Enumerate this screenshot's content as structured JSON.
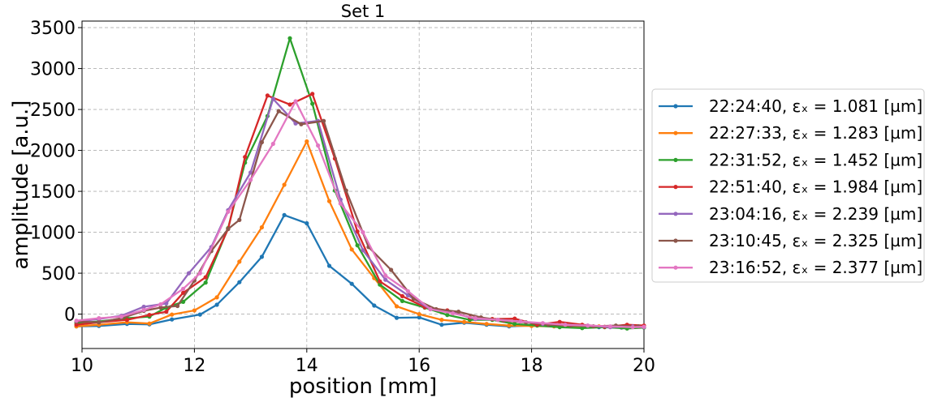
{
  "chart_data": {
    "type": "line",
    "title": "Set 1",
    "xlabel": "position [mm]",
    "ylabel": "amplitude [a.u.]",
    "xlim": [
      10,
      20
    ],
    "ylim": [
      -420,
      3580
    ],
    "xticks": [
      10,
      12,
      14,
      16,
      18,
      20
    ],
    "yticks": [
      0,
      500,
      1000,
      1500,
      2000,
      2500,
      3000,
      3500
    ],
    "grid": true,
    "legend_position": "right-outside",
    "series": [
      {
        "name": "22:24:40, εₓ = 1.081 [µm]",
        "color": "#1f77b4",
        "x": [
          9.9,
          10.3,
          10.8,
          11.2,
          11.6,
          12.1,
          12.4,
          12.8,
          13.2,
          13.6,
          14.0,
          14.4,
          14.8,
          15.2,
          15.6,
          16.0,
          16.4,
          16.8,
          17.2,
          17.6,
          18.0,
          18.4,
          18.8,
          19.2,
          19.6,
          20.0
        ],
        "y": [
          -150,
          -145,
          -120,
          -125,
          -65,
          -5,
          115,
          390,
          700,
          1210,
          1110,
          590,
          370,
          105,
          -45,
          -40,
          -130,
          -105,
          -130,
          -150,
          -140,
          -145,
          -150,
          -160,
          -165,
          -160
        ]
      },
      {
        "name": "22:27:33, εₓ = 1.283 [µm]",
        "color": "#ff7f0e",
        "x": [
          9.9,
          10.3,
          10.8,
          11.2,
          11.6,
          12.0,
          12.4,
          12.8,
          13.2,
          13.6,
          14.0,
          14.4,
          14.8,
          15.2,
          15.6,
          16.0,
          16.4,
          16.8,
          17.2,
          17.6,
          18.0,
          18.4,
          18.8,
          19.2,
          19.6,
          20.0
        ],
        "y": [
          -150,
          -130,
          -100,
          -115,
          -5,
          45,
          205,
          640,
          1060,
          1580,
          2110,
          1380,
          790,
          440,
          95,
          0,
          -70,
          -95,
          -120,
          -140,
          -145,
          -150,
          -150,
          -150,
          -160,
          -160
        ]
      },
      {
        "name": "22:31:52, εₓ = 1.452 [µm]",
        "color": "#2ca02c",
        "x": [
          9.9,
          10.3,
          10.8,
          11.2,
          11.5,
          11.8,
          12.2,
          12.6,
          12.9,
          13.3,
          13.7,
          14.1,
          14.5,
          14.9,
          15.3,
          15.7,
          16.1,
          16.5,
          16.9,
          17.3,
          17.7,
          18.1,
          18.5,
          18.9,
          19.3,
          19.7,
          20.0
        ],
        "y": [
          -110,
          -90,
          -50,
          -30,
          80,
          150,
          385,
          1050,
          1850,
          2420,
          3370,
          2570,
          1510,
          840,
          360,
          160,
          80,
          -10,
          -70,
          -70,
          -120,
          -140,
          -160,
          -170,
          -160,
          -175,
          -165
        ]
      },
      {
        "name": "22:51:40, εₓ = 1.984 [µm]",
        "color": "#d62728",
        "x": [
          9.9,
          10.3,
          10.8,
          11.2,
          11.5,
          11.8,
          12.2,
          12.6,
          12.9,
          13.3,
          13.7,
          14.1,
          14.5,
          14.9,
          15.3,
          15.7,
          16.1,
          16.5,
          16.9,
          17.3,
          17.7,
          18.1,
          18.5,
          18.9,
          19.3,
          19.7,
          20.0
        ],
        "y": [
          -130,
          -100,
          -70,
          -10,
          30,
          260,
          450,
          1040,
          1920,
          2670,
          2560,
          2690,
          1900,
          1010,
          400,
          220,
          85,
          45,
          -40,
          -60,
          -55,
          -130,
          -95,
          -130,
          -155,
          -130,
          -140
        ]
      },
      {
        "name": "23:04:16, εₓ = 2.239 [µm]",
        "color": "#9467bd",
        "x": [
          9.9,
          10.3,
          10.7,
          11.1,
          11.5,
          11.9,
          12.3,
          12.6,
          13.0,
          13.4,
          13.8,
          14.2,
          14.6,
          15.0,
          15.4,
          15.8,
          16.2,
          16.6,
          17.0,
          17.4,
          17.8,
          18.2,
          18.6,
          19.0,
          19.4,
          19.8,
          20.0
        ],
        "y": [
          -90,
          -60,
          -20,
          90,
          130,
          500,
          820,
          1270,
          1730,
          2630,
          2330,
          2360,
          1400,
          780,
          420,
          230,
          60,
          20,
          -60,
          -70,
          -90,
          -120,
          -130,
          -140,
          -160,
          -150,
          -160
        ]
      },
      {
        "name": "23:10:45, εₓ = 2.325 [µm]",
        "color": "#8c564b",
        "x": [
          9.9,
          10.3,
          10.7,
          11.1,
          11.4,
          11.7,
          12.0,
          12.3,
          12.6,
          12.8,
          13.2,
          13.5,
          13.9,
          14.3,
          14.7,
          15.1,
          15.5,
          15.9,
          16.3,
          16.7,
          17.1,
          17.5,
          17.9,
          18.3,
          18.7,
          19.1,
          19.5,
          19.9
        ],
        "y": [
          -90,
          -100,
          -50,
          40,
          80,
          100,
          410,
          770,
          1040,
          1150,
          2100,
          2480,
          2320,
          2360,
          1510,
          820,
          540,
          190,
          60,
          30,
          -40,
          -80,
          -100,
          -130,
          -140,
          -150,
          -140,
          -150
        ]
      },
      {
        "name": "23:16:52, εₓ = 2.377 [µm]",
        "color": "#e377c2",
        "x": [
          9.9,
          10.3,
          10.7,
          11.1,
          11.4,
          11.8,
          12.1,
          12.6,
          13.0,
          13.4,
          13.8,
          14.2,
          14.6,
          15.0,
          15.4,
          15.8,
          16.2,
          16.6,
          17.0,
          17.4,
          17.8,
          18.2,
          18.6,
          19.0,
          19.4,
          19.8,
          20.0
        ],
        "y": [
          -80,
          -50,
          -30,
          50,
          120,
          310,
          500,
          1250,
          1640,
          2080,
          2600,
          2060,
          1350,
          1000,
          470,
          280,
          60,
          10,
          -50,
          -70,
          -90,
          -110,
          -130,
          -140,
          -150,
          -160,
          -155
        ]
      }
    ]
  }
}
